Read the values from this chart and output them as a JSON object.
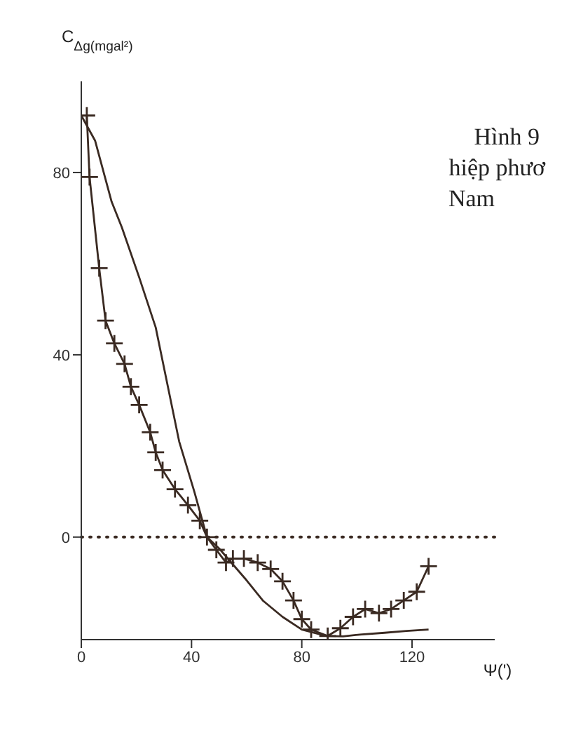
{
  "chart_data": {
    "type": "line",
    "ylabel": "C$_{Δg(mgal²)}$",
    "xlabel": "Ψ(')",
    "annotations": [
      "Hình 9",
      "hiệp phươ",
      "Nam"
    ],
    "xlim": [
      0,
      150
    ],
    "xticks": [
      0,
      40,
      80,
      120
    ],
    "ylim": [
      -22.5,
      100
    ],
    "yticks": [
      0,
      40,
      80
    ],
    "grid": false,
    "legend": false,
    "line_style": "solid",
    "ref_lines": [
      {
        "axis": "y",
        "value": 0,
        "label": null,
        "color": "#3a2a22",
        "line_style": "dotted"
      }
    ],
    "series": [
      {
        "color": "#3a2a22",
        "marker": "cross",
        "x": [
          2,
          3,
          6.5,
          8.8,
          12,
          15.7,
          18,
          21,
          25,
          27,
          29.5,
          34,
          38.7,
          43,
          45.6,
          49,
          52.5,
          55,
          59,
          64,
          68.7,
          73,
          77,
          80,
          83.4,
          89.4,
          94,
          98.6,
          103,
          108,
          112.4,
          117,
          121.7,
          126
        ],
        "values": [
          92.5,
          79,
          59,
          47.5,
          42.5,
          38,
          33,
          29,
          23,
          18.6,
          14.7,
          10.5,
          7,
          3.6,
          0,
          -2.8,
          -5.6,
          -4.7,
          -4.7,
          -5.6,
          -7,
          -9.7,
          -13.9,
          -18,
          -20.3,
          -21.7,
          -20,
          -17.5,
          -15.8,
          -16.7,
          -15.8,
          -13.9,
          -12,
          -6.4
        ]
      },
      {
        "color": "#3a2a22",
        "marker": "none",
        "x": [
          0,
          5,
          11,
          14.7,
          21,
          27,
          35.5,
          41,
          45.6,
          50,
          55,
          60,
          66,
          73,
          80,
          89,
          95,
          101,
          110,
          118,
          126
        ],
        "values": [
          92.5,
          87,
          73.6,
          68,
          57,
          46,
          21,
          10,
          0,
          -2.5,
          -6,
          -9.5,
          -14,
          -17.5,
          -20.3,
          -21.7,
          -21.8,
          -21.4,
          -21,
          -20.6,
          -20.3
        ]
      }
    ]
  }
}
